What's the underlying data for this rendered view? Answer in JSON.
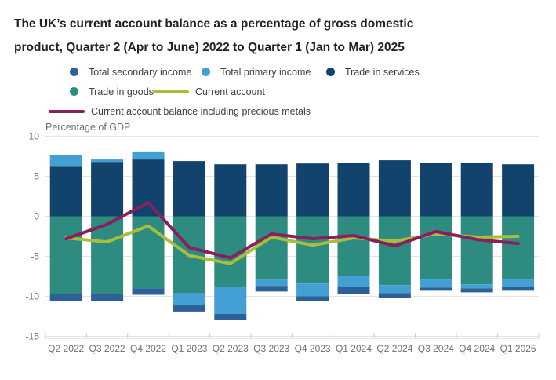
{
  "title": "The UK’s current account balance as a percentage of gross domestic product, Quarter 2 (Apr to June) 2022 to Quarter 1 (Jan to Mar) 2025",
  "colors": {
    "trade_in_services": "#12436d",
    "total_primary_income": "#42a0d5",
    "trade_in_goods": "#2e8b80",
    "total_secondary_income": "#2d6096",
    "current_account": "#a9bd3b",
    "current_account_incl_precious_metals": "#8a1f5e",
    "title_text": "#222222",
    "legend_text": "#414042",
    "axis_text": "#707071",
    "gridline": "#e4e4e4",
    "axis_line": "#c9ced3"
  },
  "legend": {
    "items": [
      {
        "label": "Total secondary income",
        "marker": "dot",
        "color": "#2d6096"
      },
      {
        "label": "Total primary income",
        "marker": "dot",
        "color": "#42a0d5"
      },
      {
        "label": "Trade in services",
        "marker": "dot",
        "color": "#12436d"
      },
      {
        "label": "Trade in goods",
        "marker": "dot",
        "color": "#2e8b80"
      },
      {
        "label": "Current account",
        "marker": "line",
        "color": "#a9bd3b"
      },
      {
        "label": "Current account balance including precious metals",
        "marker": "line",
        "color": "#8a1f5e"
      }
    ]
  },
  "chart_data": {
    "type": "bar",
    "subtype": "stacked-bars-with-line-overlays",
    "title": "The UK’s current account balance as a percentage of gross domestic product",
    "axis_label": "Percentage of GDP",
    "ylabel": "Percentage of GDP",
    "xlabel": "",
    "ylim": [
      -15,
      10
    ],
    "yticks": [
      10,
      5,
      0,
      -5,
      -10,
      -15
    ],
    "grid": true,
    "legend_position": "top",
    "categories": [
      "Q2 2022",
      "Q3 2022",
      "Q4 2022",
      "Q1 2023",
      "Q2 2023",
      "Q3 2023",
      "Q4 2023",
      "Q1 2024",
      "Q2 2024",
      "Q3 2024",
      "Q4 2024",
      "Q1 2025"
    ],
    "bar_series": [
      {
        "name": "Trade in services",
        "color": "#12436d",
        "values": [
          6.2,
          6.8,
          7.1,
          6.9,
          6.5,
          6.5,
          6.6,
          6.7,
          7.0,
          6.7,
          6.7,
          6.5
        ]
      },
      {
        "name": "Total primary income",
        "color": "#42a0d5",
        "values": [
          1.5,
          0.3,
          1.0,
          -1.5,
          -3.4,
          -0.9,
          -1.6,
          -1.3,
          -1.0,
          -1.1,
          -0.5,
          -1.0
        ]
      },
      {
        "name": "Trade in goods",
        "color": "#2e8b80",
        "values": [
          -9.7,
          -9.7,
          -9.0,
          -9.6,
          -8.8,
          -7.8,
          -8.4,
          -7.5,
          -8.6,
          -7.8,
          -8.5,
          -7.8
        ]
      },
      {
        "name": "Total secondary income",
        "color": "#2d6096",
        "values": [
          -0.9,
          -0.9,
          -0.8,
          -0.8,
          -0.7,
          -0.7,
          -0.6,
          -0.9,
          -0.6,
          -0.4,
          -0.5,
          -0.5
        ]
      }
    ],
    "line_series": [
      {
        "name": "Current account",
        "color": "#a9bd3b",
        "values": [
          -2.7,
          -3.2,
          -1.2,
          -4.9,
          -5.9,
          -2.6,
          -3.6,
          -2.7,
          -3.1,
          -2.2,
          -2.6,
          -2.5
        ]
      },
      {
        "name": "Current account balance including precious metals",
        "color": "#8a1f5e",
        "values": [
          -2.8,
          -1.0,
          1.7,
          -3.9,
          -5.2,
          -2.2,
          -2.8,
          -2.4,
          -3.7,
          -1.9,
          -2.9,
          -3.4
        ]
      }
    ],
    "stack_order_positive": [
      "Trade in services",
      "Total primary income"
    ],
    "stack_order_negative": [
      "Trade in goods",
      "Total primary income",
      "Total secondary income"
    ]
  }
}
